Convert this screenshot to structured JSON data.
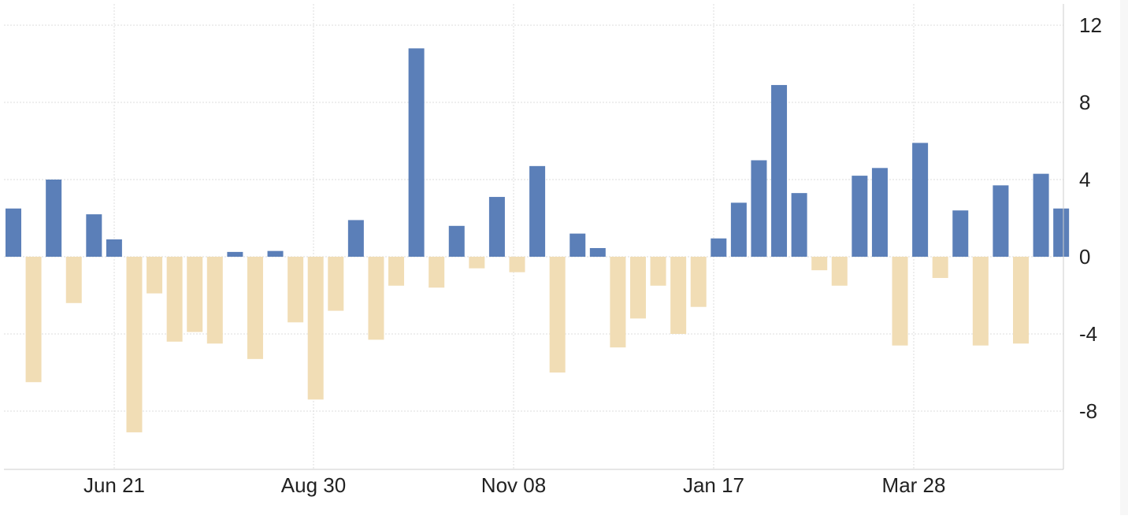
{
  "chart_data": {
    "type": "bar",
    "title": "",
    "xlabel": "",
    "ylabel": "",
    "ylim": [
      -11,
      12
    ],
    "yticks": [
      12,
      8,
      4,
      0,
      -4,
      -8
    ],
    "xtick_labels": [
      "Jun 21",
      "Aug 30",
      "Nov 08",
      "Jan 17",
      "Mar 28"
    ],
    "grid": true,
    "colors": {
      "positive": "#5b7fb8",
      "negative": "#f1ddb5"
    },
    "values": [
      2.5,
      -6.5,
      4.0,
      -2.4,
      2.2,
      0.9,
      -9.1,
      -1.9,
      -4.4,
      -3.9,
      -4.5,
      0.25,
      -5.3,
      0.3,
      -3.4,
      -7.4,
      -2.8,
      1.9,
      -4.3,
      -1.5,
      10.8,
      -1.6,
      1.6,
      -0.6,
      3.1,
      -0.8,
      4.7,
      -6.0,
      1.2,
      0.45,
      -4.7,
      -3.2,
      -1.5,
      -4.0,
      -2.6,
      0.95,
      2.8,
      5.0,
      8.9,
      3.3,
      -0.7,
      -1.5,
      4.2,
      4.6,
      -4.6,
      5.9,
      -1.1,
      2.4,
      -4.6,
      3.7,
      -4.5,
      4.3,
      2.5
    ]
  }
}
